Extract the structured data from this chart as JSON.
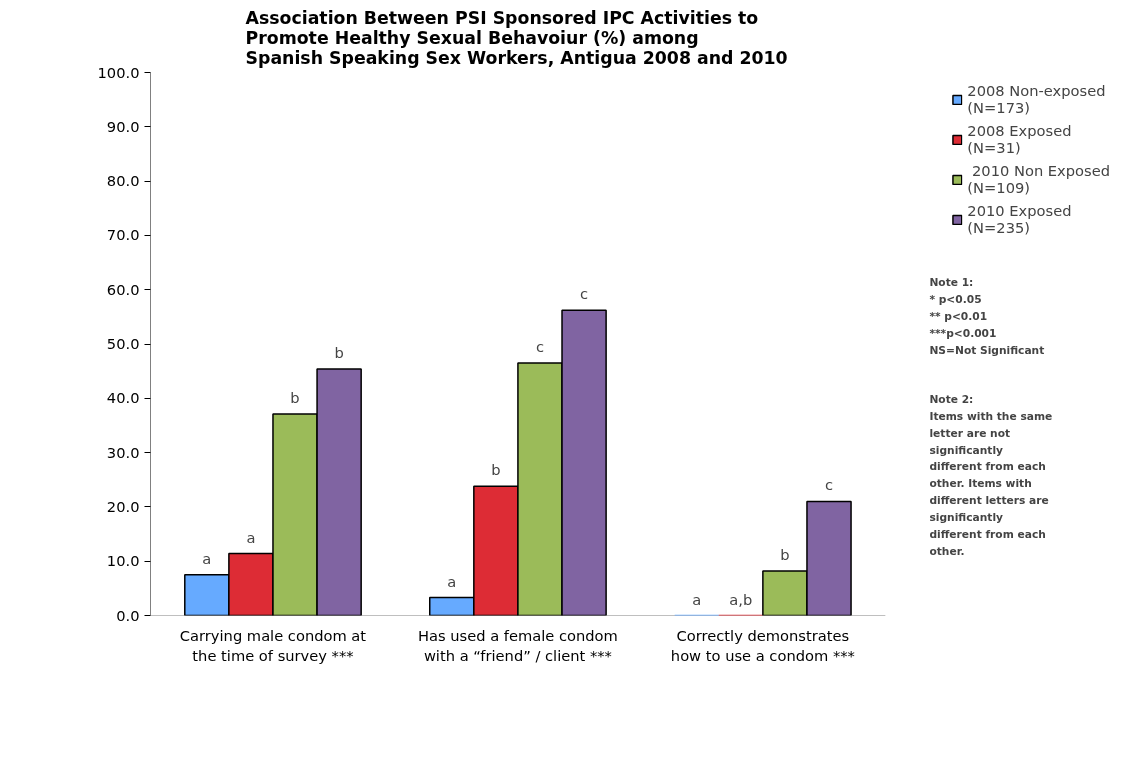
{
  "chart_data": {
    "type": "bar",
    "title": "Association Between PSI Sponsored IPC Activities to\nPromote Healthy Sexual Behavoiur (%) among\nSpanish Speaking Sex Workers, Antigua 2008 and 2010",
    "categories": [
      "Carrying male condom at\nthe time of survey ***",
      "Has used a female condom\nwith a “friend” / client ***",
      "Correctly demonstrates\nhow to use a condom ***"
    ],
    "series": [
      {
        "name": "2008 Non-exposed\n(N=173)",
        "color": "#66aaff",
        "values": [
          7.5,
          3.3,
          0
        ],
        "value_labels": [
          "a",
          "a",
          "a"
        ]
      },
      {
        "name": "2008 Exposed\n(N=31)",
        "color": "#dd2c35",
        "values": [
          11.4,
          23.8,
          0
        ],
        "value_labels": [
          "a",
          "b",
          "a,b"
        ]
      },
      {
        "name": " 2010 Non Exposed\n(N=109)",
        "color": "#9bbb59",
        "values": [
          37.1,
          46.5,
          8.2
        ],
        "value_labels": [
          "b",
          "c",
          "b"
        ]
      },
      {
        "name": "2010 Exposed\n(N=235)",
        "color": "#8064a2",
        "values": [
          45.4,
          56.2,
          21.0
        ],
        "value_labels": [
          "b",
          "c",
          "c"
        ]
      }
    ],
    "ylim": [
      0,
      100
    ],
    "yticks": [
      {
        "value": 0,
        "label": "0.0"
      },
      {
        "value": 10,
        "label": "10.0"
      },
      {
        "value": 20,
        "label": "20.0"
      },
      {
        "value": 30,
        "label": "30.0"
      },
      {
        "value": 40,
        "label": "40.0"
      },
      {
        "value": 50,
        "label": "50.0"
      },
      {
        "value": 60,
        "label": "60.0"
      },
      {
        "value": 70,
        "label": "70.0"
      },
      {
        "value": 80,
        "label": "80.0"
      },
      {
        "value": 90,
        "label": "90.0"
      },
      {
        "value": 100,
        "label": "100.0"
      }
    ],
    "grid": false,
    "legend": "top right",
    "annotations": [
      "Note 1:\n* p<0.05\n** p<0.01\n***p<0.001\nNS=Not Significant",
      "Note 2:\nItems with the same\nletter are not\nsignificantly\ndifferent from each\nother. Items with\ndifferent letters are\nsignificantly\ndifferent from each\nother."
    ]
  }
}
